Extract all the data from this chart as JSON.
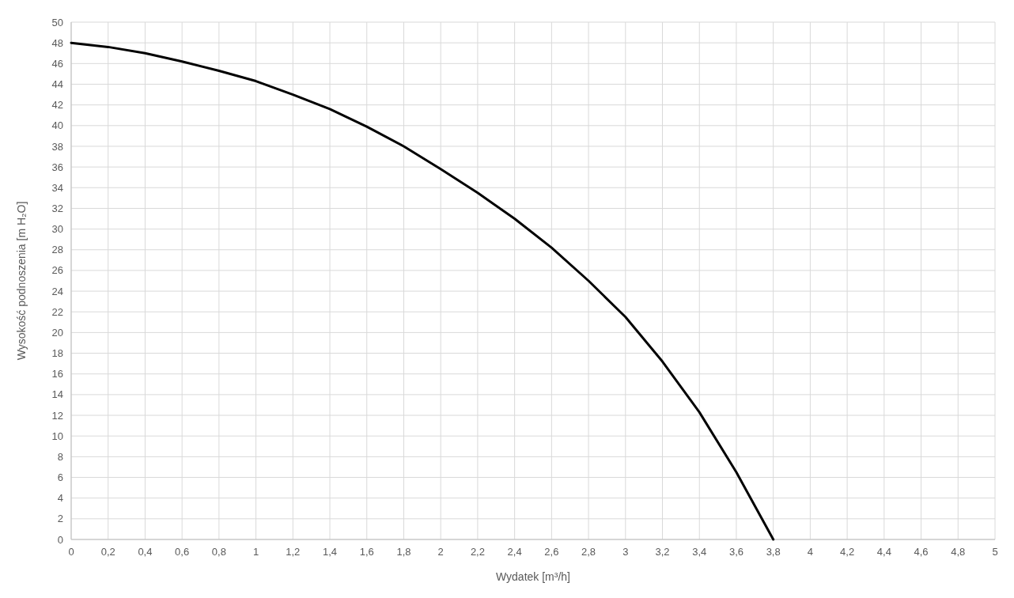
{
  "chart_data": {
    "type": "line",
    "xlabel": "Wydatek [m³/h]",
    "ylabel": "Wysokość podnoszenia [m H₂O]",
    "x": [
      0,
      0.2,
      0.4,
      0.6,
      0.8,
      1.0,
      1.2,
      1.4,
      1.6,
      1.8,
      2.0,
      2.2,
      2.4,
      2.6,
      2.8,
      3.0,
      3.2,
      3.4,
      3.6,
      3.8
    ],
    "series": [
      {
        "color": "#000000",
        "values": [
          48,
          47.6,
          47.0,
          46.2,
          45.3,
          44.3,
          43.0,
          41.6,
          39.9,
          38.0,
          35.8,
          33.5,
          31.0,
          28.2,
          25.0,
          21.5,
          17.2,
          12.3,
          6.5,
          0
        ]
      }
    ],
    "xlim": [
      0,
      5
    ],
    "xticks": [
      0,
      {
        "value": 0.2,
        "label": "0,2"
      },
      {
        "value": 0.4,
        "label": "0,4"
      },
      {
        "value": 0.6,
        "label": "0,6"
      },
      {
        "value": 0.8,
        "label": "0,8"
      },
      1,
      {
        "value": 1.2,
        "label": "1,2"
      },
      {
        "value": 1.4,
        "label": "1,4"
      },
      {
        "value": 1.6,
        "label": "1,6"
      },
      {
        "value": 1.8,
        "label": "1,8"
      },
      2,
      {
        "value": 2.2,
        "label": "2,2"
      },
      {
        "value": 2.4,
        "label": "2,4"
      },
      {
        "value": 2.6,
        "label": "2,6"
      },
      {
        "value": 2.8,
        "label": "2,8"
      },
      3,
      {
        "value": 3.2,
        "label": "3,2"
      },
      {
        "value": 3.4,
        "label": "3,4"
      },
      {
        "value": 3.6,
        "label": "3,6"
      },
      {
        "value": 3.8,
        "label": "3,8"
      },
      4,
      {
        "value": 4.2,
        "label": "4,2"
      },
      {
        "value": 4.4,
        "label": "4,4"
      },
      {
        "value": 4.6,
        "label": "4,6"
      },
      {
        "value": 4.8,
        "label": "4,8"
      },
      5
    ],
    "ylim": [
      0,
      50
    ],
    "yticks": [
      0,
      2,
      4,
      6,
      8,
      10,
      12,
      14,
      16,
      18,
      20,
      22,
      24,
      26,
      28,
      30,
      32,
      34,
      36,
      38,
      40,
      42,
      44,
      46,
      48,
      50
    ],
    "grid": true,
    "marker": "none",
    "line_style": "solid"
  }
}
